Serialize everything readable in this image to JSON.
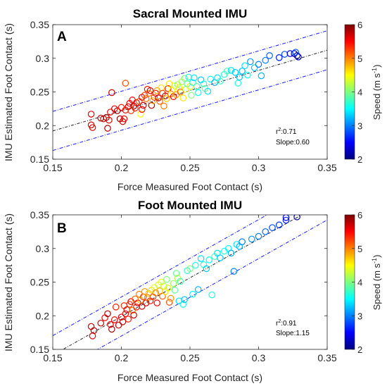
{
  "chart_data": [
    {
      "type": "scatter",
      "panel_letter": "A",
      "title": "Sacral Mounted IMU",
      "xlabel": "Force Measured Foot Contact (s)",
      "ylabel": "IMU Estimated Foot Contact (s)",
      "xlim": [
        0.15,
        0.35
      ],
      "ylim": [
        0.15,
        0.35
      ],
      "xticks": [
        "0.15",
        "0.2",
        "0.25",
        "0.3",
        "0.35"
      ],
      "yticks": [
        "0.15",
        "0.2",
        "0.25",
        "0.3",
        "0.35"
      ],
      "annotation": {
        "r2_label": "r",
        "r2_sup": "2",
        "r2_value": ":0.71",
        "slope_text": "Slope:0.60"
      },
      "colorbar": {
        "label_main": "Speed (m s",
        "label_sup": "-1",
        "label_end": ")",
        "range": [
          2,
          6
        ],
        "ticks": [
          "2",
          "3",
          "4",
          "5",
          "6"
        ]
      },
      "fit_line": {
        "slope": 0.6,
        "intercept": 0.102
      },
      "prediction_band": 0.029,
      "points": [
        [
          0.178,
          0.217,
          5.6
        ],
        [
          0.178,
          0.201,
          5.7
        ],
        [
          0.179,
          0.197,
          5.6
        ],
        [
          0.185,
          0.211,
          5.8
        ],
        [
          0.187,
          0.21,
          5.7
        ],
        [
          0.189,
          0.212,
          5.9
        ],
        [
          0.191,
          0.208,
          5.6
        ],
        [
          0.19,
          0.196,
          5.8
        ],
        [
          0.192,
          0.22,
          5.5
        ],
        [
          0.193,
          0.249,
          5.7
        ],
        [
          0.195,
          0.225,
          5.6
        ],
        [
          0.197,
          0.222,
          5.8
        ],
        [
          0.199,
          0.21,
          5.9
        ],
        [
          0.201,
          0.206,
          5.7
        ],
        [
          0.202,
          0.21,
          5.5
        ],
        [
          0.203,
          0.223,
          5.6
        ],
        [
          0.2,
          0.227,
          5.4
        ],
        [
          0.205,
          0.228,
          5.7
        ],
        [
          0.206,
          0.233,
          5.5
        ],
        [
          0.203,
          0.263,
          5.2
        ],
        [
          0.207,
          0.222,
          5.3
        ],
        [
          0.208,
          0.238,
          5.5
        ],
        [
          0.209,
          0.229,
          5.8
        ],
        [
          0.21,
          0.226,
          5.4
        ],
        [
          0.211,
          0.234,
          5.6
        ],
        [
          0.213,
          0.236,
          5.2
        ],
        [
          0.214,
          0.217,
          4.5
        ],
        [
          0.215,
          0.242,
          5.6
        ],
        [
          0.215,
          0.224,
          5.5
        ],
        [
          0.216,
          0.23,
          5.7
        ],
        [
          0.217,
          0.245,
          5.3
        ],
        [
          0.218,
          0.24,
          5.1
        ],
        [
          0.219,
          0.254,
          5.4
        ],
        [
          0.22,
          0.248,
          5.0
        ],
        [
          0.221,
          0.252,
          5.6
        ],
        [
          0.222,
          0.23,
          5.8
        ],
        [
          0.223,
          0.237,
          4.8
        ],
        [
          0.224,
          0.242,
          5.2
        ],
        [
          0.225,
          0.248,
          5.5
        ],
        [
          0.226,
          0.252,
          4.9
        ],
        [
          0.227,
          0.241,
          5.7
        ],
        [
          0.228,
          0.236,
          5.1
        ],
        [
          0.229,
          0.256,
          4.6
        ],
        [
          0.23,
          0.248,
          5.3
        ],
        [
          0.231,
          0.229,
          5.0
        ],
        [
          0.232,
          0.244,
          5.8
        ],
        [
          0.233,
          0.24,
          4.7
        ],
        [
          0.234,
          0.255,
          5.4
        ],
        [
          0.235,
          0.262,
          4.6
        ],
        [
          0.236,
          0.247,
          5.0
        ],
        [
          0.237,
          0.252,
          4.5
        ],
        [
          0.238,
          0.243,
          5.5
        ],
        [
          0.239,
          0.259,
          4.3
        ],
        [
          0.24,
          0.246,
          4.9
        ],
        [
          0.241,
          0.261,
          4.1
        ],
        [
          0.242,
          0.256,
          4.4
        ],
        [
          0.243,
          0.25,
          5.1
        ],
        [
          0.244,
          0.265,
          4.2
        ],
        [
          0.245,
          0.241,
          4.6
        ],
        [
          0.246,
          0.27,
          4.0
        ],
        [
          0.247,
          0.254,
          4.3
        ],
        [
          0.248,
          0.262,
          3.9
        ],
        [
          0.249,
          0.272,
          3.6
        ],
        [
          0.25,
          0.258,
          4.4
        ],
        [
          0.251,
          0.245,
          4.0
        ],
        [
          0.252,
          0.264,
          3.6
        ],
        [
          0.253,
          0.271,
          3.4
        ],
        [
          0.255,
          0.258,
          3.8
        ],
        [
          0.256,
          0.249,
          3.5
        ],
        [
          0.258,
          0.268,
          3.3
        ],
        [
          0.26,
          0.262,
          3.6
        ],
        [
          0.261,
          0.255,
          3.9
        ],
        [
          0.263,
          0.251,
          3.4
        ],
        [
          0.265,
          0.269,
          3.5
        ],
        [
          0.268,
          0.264,
          3.2
        ],
        [
          0.27,
          0.271,
          3.4
        ],
        [
          0.272,
          0.266,
          3.7
        ],
        [
          0.275,
          0.276,
          3.6
        ],
        [
          0.277,
          0.281,
          3.8
        ],
        [
          0.28,
          0.282,
          3.4
        ],
        [
          0.283,
          0.279,
          3.3
        ],
        [
          0.285,
          0.263,
          3.6
        ],
        [
          0.286,
          0.272,
          3.3
        ],
        [
          0.288,
          0.281,
          3.2
        ],
        [
          0.29,
          0.289,
          3.4
        ],
        [
          0.292,
          0.275,
          3.5
        ],
        [
          0.294,
          0.295,
          3.1
        ],
        [
          0.297,
          0.286,
          3.3
        ],
        [
          0.3,
          0.291,
          3.0
        ],
        [
          0.302,
          0.274,
          3.2
        ],
        [
          0.305,
          0.297,
          3.0
        ],
        [
          0.308,
          0.304,
          2.9
        ],
        [
          0.315,
          0.301,
          2.6
        ],
        [
          0.319,
          0.306,
          2.8
        ],
        [
          0.323,
          0.307,
          2.4
        ],
        [
          0.326,
          0.307,
          2.2
        ],
        [
          0.328,
          0.304,
          2.0
        ],
        [
          0.329,
          0.302,
          2.3
        ],
        [
          0.327,
          0.309,
          2.8
        ]
      ]
    },
    {
      "type": "scatter",
      "panel_letter": "B",
      "title": "Foot Mounted IMU",
      "xlabel": "Force Measured Foot Contact (s)",
      "ylabel": "IMU Estimated Foot Contact (s)",
      "xlim": [
        0.15,
        0.35
      ],
      "ylim": [
        0.15,
        0.35
      ],
      "xticks": [
        "0.15",
        "0.2",
        "0.25",
        "0.3",
        "0.35"
      ],
      "yticks": [
        "0.15",
        "0.2",
        "0.25",
        "0.3",
        "0.35"
      ],
      "annotation": {
        "r2_label": "r",
        "r2_sup": "2",
        "r2_value": ":0.91",
        "slope_text": "Slope:1.15"
      },
      "colorbar": {
        "label_main": "Speed (m s",
        "label_sup": "-1",
        "label_end": ")",
        "range": [
          2,
          6
        ],
        "ticks": [
          "2",
          "3",
          "4",
          "5",
          "6"
        ]
      },
      "fit_line": {
        "slope": 1.15,
        "intercept": -0.0311
      },
      "prediction_band": 0.029,
      "points": [
        [
          0.178,
          0.184,
          5.7
        ],
        [
          0.179,
          0.17,
          5.6
        ],
        [
          0.18,
          0.178,
          5.8
        ],
        [
          0.185,
          0.189,
          5.7
        ],
        [
          0.188,
          0.197,
          5.5
        ],
        [
          0.19,
          0.203,
          5.8
        ],
        [
          0.192,
          0.187,
          5.6
        ],
        [
          0.193,
          0.18,
          5.9
        ],
        [
          0.195,
          0.194,
          5.6
        ],
        [
          0.196,
          0.213,
          5.4
        ],
        [
          0.198,
          0.186,
          5.7
        ],
        [
          0.2,
          0.198,
          5.6
        ],
        [
          0.201,
          0.191,
          5.8
        ],
        [
          0.202,
          0.215,
          5.3
        ],
        [
          0.203,
          0.203,
          5.5
        ],
        [
          0.204,
          0.209,
          5.7
        ],
        [
          0.205,
          0.195,
          5.4
        ],
        [
          0.206,
          0.217,
          5.3
        ],
        [
          0.207,
          0.221,
          5.6
        ],
        [
          0.208,
          0.208,
          5.0
        ],
        [
          0.209,
          0.201,
          5.7
        ],
        [
          0.21,
          0.225,
          5.1
        ],
        [
          0.211,
          0.213,
          5.4
        ],
        [
          0.212,
          0.219,
          5.6
        ],
        [
          0.213,
          0.232,
          5.0
        ],
        [
          0.214,
          0.223,
          4.8
        ],
        [
          0.215,
          0.214,
          5.7
        ],
        [
          0.216,
          0.228,
          5.3
        ],
        [
          0.217,
          0.236,
          4.9
        ],
        [
          0.218,
          0.219,
          5.6
        ],
        [
          0.219,
          0.227,
          5.0
        ],
        [
          0.22,
          0.233,
          4.7
        ],
        [
          0.221,
          0.222,
          5.4
        ],
        [
          0.222,
          0.238,
          4.6
        ],
        [
          0.223,
          0.228,
          5.2
        ],
        [
          0.224,
          0.242,
          4.4
        ],
        [
          0.225,
          0.234,
          5.0
        ],
        [
          0.226,
          0.219,
          5.5
        ],
        [
          0.227,
          0.246,
          4.3
        ],
        [
          0.228,
          0.237,
          4.8
        ],
        [
          0.229,
          0.25,
          4.5
        ],
        [
          0.23,
          0.229,
          5.1
        ],
        [
          0.231,
          0.244,
          4.2
        ],
        [
          0.232,
          0.236,
          4.6
        ],
        [
          0.233,
          0.254,
          4.0
        ],
        [
          0.234,
          0.241,
          4.4
        ],
        [
          0.235,
          0.22,
          5.2
        ],
        [
          0.236,
          0.226,
          4.9
        ],
        [
          0.238,
          0.248,
          4.1
        ],
        [
          0.239,
          0.238,
          3.9
        ],
        [
          0.24,
          0.263,
          3.9
        ],
        [
          0.241,
          0.256,
          4.2
        ],
        [
          0.242,
          0.222,
          3.4
        ],
        [
          0.243,
          0.251,
          3.8
        ],
        [
          0.245,
          0.217,
          3.6
        ],
        [
          0.246,
          0.224,
          3.3
        ],
        [
          0.248,
          0.267,
          3.7
        ],
        [
          0.25,
          0.27,
          4.0
        ],
        [
          0.252,
          0.232,
          3.5
        ],
        [
          0.254,
          0.275,
          3.6
        ],
        [
          0.256,
          0.239,
          3.2
        ],
        [
          0.258,
          0.285,
          3.4
        ],
        [
          0.26,
          0.276,
          3.7
        ],
        [
          0.262,
          0.27,
          3.3
        ],
        [
          0.264,
          0.283,
          3.5
        ],
        [
          0.266,
          0.231,
          3.6
        ],
        [
          0.268,
          0.288,
          3.8
        ],
        [
          0.27,
          0.293,
          3.4
        ],
        [
          0.272,
          0.286,
          3.3
        ],
        [
          0.275,
          0.296,
          3.6
        ],
        [
          0.278,
          0.3,
          3.5
        ],
        [
          0.28,
          0.293,
          3.2
        ],
        [
          0.282,
          0.266,
          3.0
        ],
        [
          0.284,
          0.306,
          3.4
        ],
        [
          0.286,
          0.303,
          3.2
        ],
        [
          0.288,
          0.31,
          3.0
        ],
        [
          0.295,
          0.314,
          3.1
        ],
        [
          0.3,
          0.318,
          3.0
        ],
        [
          0.305,
          0.325,
          2.9
        ],
        [
          0.31,
          0.331,
          2.8
        ],
        [
          0.315,
          0.335,
          2.7
        ],
        [
          0.32,
          0.342,
          2.6
        ],
        [
          0.32,
          0.346,
          2.5
        ],
        [
          0.328,
          0.347,
          2.2
        ]
      ]
    }
  ]
}
